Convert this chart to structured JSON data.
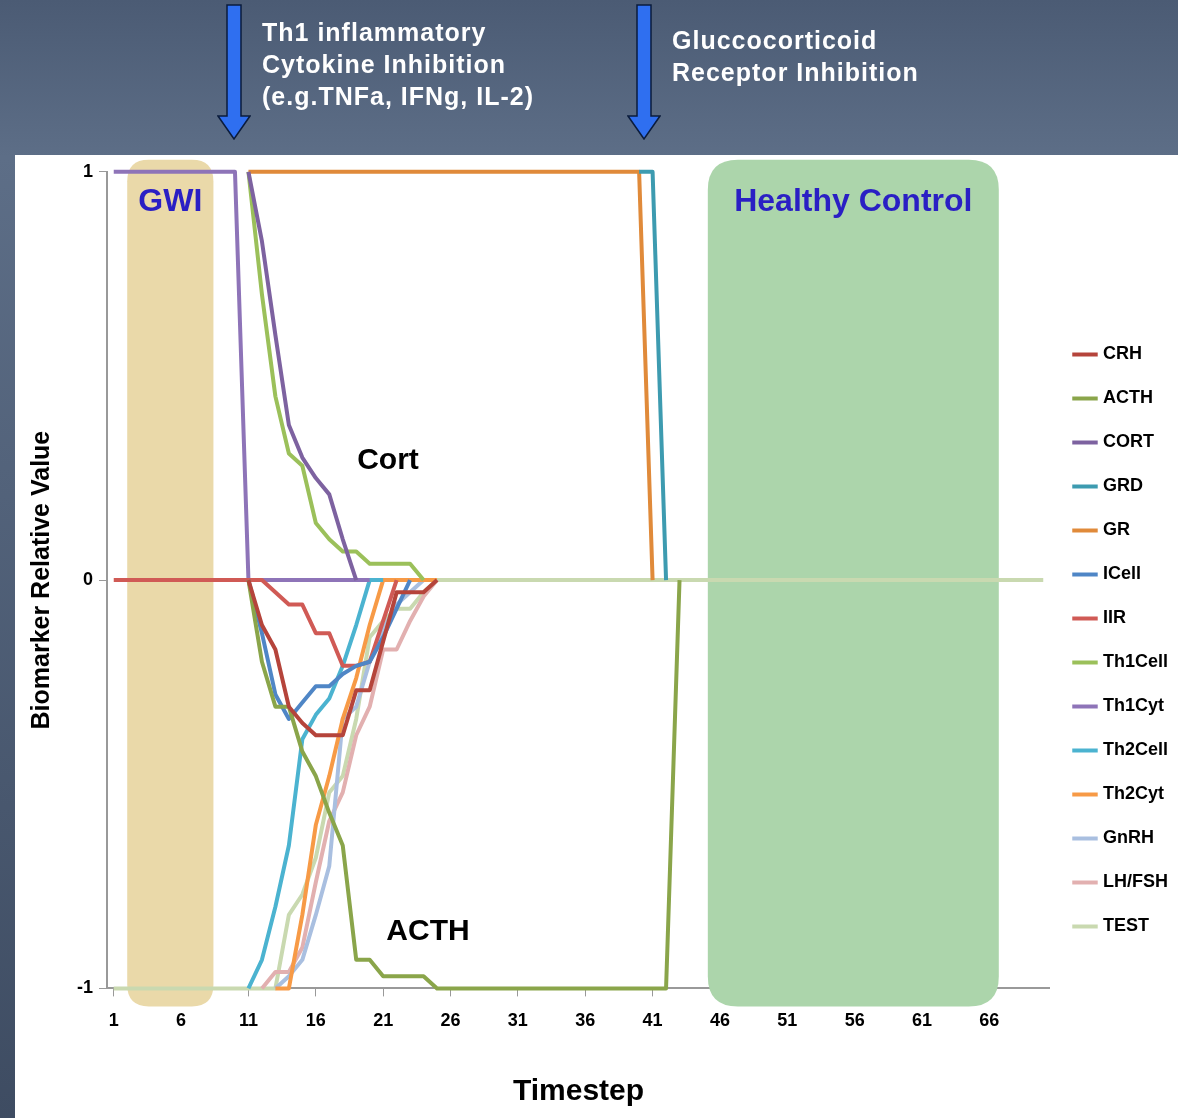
{
  "chart_data": {
    "type": "line",
    "xlabel": "Timestep",
    "ylabel": "Biomarker Relative Value",
    "legend": "right",
    "x": [
      1,
      2,
      3,
      4,
      5,
      6,
      7,
      8,
      9,
      10,
      11,
      12,
      13,
      14,
      15,
      16,
      17,
      18,
      19,
      20,
      21,
      22,
      23,
      24,
      25,
      26,
      27,
      28,
      29,
      30,
      31,
      32,
      33,
      34,
      35,
      36,
      37,
      38,
      39,
      40,
      41,
      42,
      43,
      44,
      45,
      46,
      47,
      48,
      49,
      50,
      51,
      52,
      53,
      54,
      55,
      56,
      57,
      58,
      59,
      60,
      61,
      62,
      63,
      64,
      65,
      66,
      67,
      68,
      69,
      70
    ],
    "xlim": [
      0.5,
      70.5
    ],
    "xticks": [
      1,
      6,
      11,
      16,
      21,
      26,
      31,
      36,
      41,
      46,
      51,
      56,
      61,
      66
    ],
    "ylim": [
      -1,
      1
    ],
    "yticks": [
      -1,
      0,
      1
    ],
    "series": [
      {
        "name": "CRH",
        "color": "#b5443b",
        "values": [
          null,
          null,
          null,
          null,
          null,
          null,
          null,
          null,
          null,
          null,
          0,
          -0.11,
          -0.17,
          -0.31,
          -0.35,
          -0.38,
          -0.38,
          -0.38,
          -0.27,
          -0.27,
          -0.15,
          -0.03,
          -0.03,
          -0.03,
          0,
          null,
          null,
          null,
          null,
          null,
          null,
          null,
          null,
          null,
          null,
          null,
          null,
          null,
          null,
          null,
          null,
          null,
          null,
          null,
          null,
          null,
          null,
          null,
          null,
          null,
          null,
          null,
          null,
          null,
          null,
          null,
          null,
          null,
          null,
          null,
          null,
          null,
          null,
          null,
          null,
          null,
          null,
          null,
          null,
          null
        ]
      },
      {
        "name": "ACTH",
        "color": "#8aa54a",
        "values": [
          null,
          null,
          null,
          null,
          null,
          null,
          null,
          null,
          null,
          null,
          0,
          -0.2,
          -0.31,
          -0.31,
          -0.42,
          -0.48,
          -0.57,
          -0.65,
          -0.93,
          -0.93,
          -0.97,
          -0.97,
          -0.97,
          -0.97,
          -1,
          -1,
          -1,
          -1,
          -1,
          -1,
          -1,
          -1,
          -1,
          -1,
          -1,
          -1,
          -1,
          -1,
          -1,
          -1,
          -1,
          -1,
          0,
          null,
          null,
          null,
          null,
          null,
          null,
          null,
          null,
          null,
          null,
          null,
          null,
          null,
          null,
          null,
          null,
          null,
          null,
          null,
          null,
          null,
          null,
          null,
          null,
          null,
          null,
          null
        ]
      },
      {
        "name": "CORT",
        "color": "#7d62a0",
        "values": [
          null,
          null,
          null,
          null,
          null,
          null,
          null,
          null,
          null,
          null,
          1,
          0.83,
          0.6,
          0.38,
          0.3,
          0.25,
          0.21,
          0.1,
          0,
          null,
          null,
          null,
          null,
          null,
          null,
          null,
          null,
          null,
          null,
          null,
          null,
          null,
          null,
          null,
          null,
          null,
          null,
          null,
          null,
          null,
          null,
          null,
          null,
          null,
          null,
          null,
          null,
          null,
          null,
          null,
          null,
          null,
          null,
          null,
          null,
          null,
          null,
          null,
          null,
          null,
          null,
          null,
          null,
          null,
          null,
          null,
          null,
          null,
          null,
          null
        ]
      },
      {
        "name": "GRD",
        "color": "#3d9bb0",
        "values": [
          null,
          null,
          null,
          null,
          null,
          null,
          null,
          null,
          null,
          null,
          null,
          null,
          null,
          null,
          null,
          null,
          null,
          null,
          null,
          null,
          null,
          null,
          null,
          null,
          null,
          null,
          null,
          null,
          null,
          null,
          null,
          null,
          null,
          null,
          null,
          null,
          null,
          null,
          null,
          1,
          1,
          0,
          null,
          null,
          null,
          null,
          null,
          null,
          null,
          null,
          null,
          null,
          null,
          null,
          null,
          null,
          null,
          null,
          null,
          null,
          null,
          null,
          null,
          null,
          null,
          null,
          null,
          null,
          null,
          null
        ]
      },
      {
        "name": "GR",
        "color": "#e08a3a",
        "values": [
          null,
          null,
          null,
          null,
          null,
          null,
          null,
          null,
          null,
          null,
          1,
          1,
          1,
          1,
          1,
          1,
          1,
          1,
          1,
          1,
          1,
          1,
          1,
          1,
          1,
          1,
          1,
          1,
          1,
          1,
          1,
          1,
          1,
          1,
          1,
          1,
          1,
          1,
          1,
          1,
          0,
          null,
          null,
          null,
          null,
          null,
          null,
          null,
          null,
          null,
          null,
          null,
          null,
          null,
          null,
          null,
          null,
          null,
          null,
          null,
          null,
          null,
          null,
          null,
          null,
          null,
          null,
          null,
          null,
          null
        ]
      },
      {
        "name": "ICell",
        "color": "#4f86c6",
        "values": [
          null,
          null,
          null,
          null,
          null,
          null,
          null,
          null,
          null,
          null,
          0,
          -0.13,
          -0.28,
          -0.34,
          -0.3,
          -0.26,
          -0.26,
          -0.23,
          -0.21,
          -0.2,
          -0.14,
          -0.07,
          0,
          null,
          null,
          null,
          null,
          null,
          null,
          null,
          null,
          null,
          null,
          null,
          null,
          null,
          null,
          null,
          null,
          null,
          null,
          null,
          null,
          null,
          null,
          null,
          null,
          null,
          null,
          null,
          null,
          null,
          null,
          null,
          null,
          null,
          null,
          null,
          null,
          null,
          null,
          null,
          null,
          null,
          null,
          null,
          null,
          null,
          null,
          null
        ]
      },
      {
        "name": "IIR",
        "color": "#d05a55",
        "values": [
          0,
          0,
          0,
          0,
          0,
          0,
          0,
          0,
          0,
          0,
          0,
          0,
          -0.03,
          -0.06,
          -0.06,
          -0.13,
          -0.13,
          -0.21,
          -0.21,
          -0.2,
          -0.1,
          0,
          null,
          null,
          null,
          null,
          null,
          null,
          null,
          null,
          null,
          null,
          null,
          null,
          null,
          null,
          null,
          null,
          null,
          null,
          null,
          null,
          null,
          null,
          null,
          null,
          null,
          null,
          null,
          null,
          null,
          null,
          null,
          null,
          null,
          null,
          null,
          null,
          null,
          null,
          null,
          null,
          null,
          null,
          null,
          null,
          null,
          null,
          null,
          null
        ]
      },
      {
        "name": "Th1Cell",
        "color": "#9bc05a",
        "values": [
          null,
          null,
          null,
          null,
          null,
          null,
          null,
          null,
          null,
          null,
          1,
          0.7,
          0.45,
          0.31,
          0.28,
          0.14,
          0.1,
          0.07,
          0.07,
          0.04,
          0.04,
          0.04,
          0.04,
          0,
          null,
          null,
          null,
          null,
          null,
          null,
          null,
          null,
          null,
          null,
          null,
          null,
          null,
          null,
          null,
          null,
          null,
          null,
          null,
          null,
          null,
          null,
          null,
          null,
          null,
          null,
          null,
          null,
          null,
          null,
          null,
          null,
          null,
          null,
          null,
          null,
          null,
          null,
          null,
          null,
          null,
          null,
          null,
          null,
          null,
          null
        ]
      },
      {
        "name": "Th1Cyt",
        "color": "#8e74b8",
        "values": [
          1,
          1,
          1,
          1,
          1,
          1,
          1,
          1,
          1,
          1,
          0,
          0,
          0,
          0,
          0,
          0,
          0,
          0,
          0,
          0,
          null,
          null,
          null,
          null,
          null,
          null,
          null,
          null,
          null,
          null,
          null,
          null,
          null,
          null,
          null,
          null,
          null,
          null,
          null,
          null,
          null,
          null,
          null,
          null,
          null,
          null,
          null,
          null,
          null,
          null,
          null,
          null,
          null,
          null,
          null,
          null,
          null,
          null,
          null,
          null,
          null,
          null,
          null,
          null,
          null,
          null,
          null,
          null,
          null,
          null
        ]
      },
      {
        "name": "Th2Cell",
        "color": "#4bb3d0",
        "values": [
          null,
          null,
          null,
          null,
          null,
          null,
          null,
          null,
          null,
          null,
          -1,
          -0.93,
          -0.8,
          -0.65,
          -0.39,
          -0.33,
          -0.29,
          -0.21,
          -0.11,
          0,
          0,
          null,
          null,
          null,
          null,
          null,
          null,
          null,
          null,
          null,
          null,
          null,
          null,
          null,
          null,
          null,
          null,
          null,
          null,
          null,
          null,
          null,
          null,
          null,
          null,
          null,
          null,
          null,
          null,
          null,
          null,
          null,
          null,
          null,
          null,
          null,
          null,
          null,
          null,
          null,
          null,
          null,
          null,
          null,
          null,
          null,
          null,
          null,
          null,
          null
        ]
      },
      {
        "name": "Th2Cyt",
        "color": "#f79a46",
        "values": [
          null,
          null,
          null,
          null,
          null,
          null,
          null,
          null,
          null,
          null,
          null,
          null,
          -1,
          -1,
          -0.82,
          -0.6,
          -0.48,
          -0.34,
          -0.24,
          -0.11,
          0,
          0,
          0,
          0,
          0,
          null,
          null,
          null,
          null,
          null,
          null,
          null,
          null,
          null,
          null,
          null,
          null,
          null,
          null,
          null,
          null,
          null,
          null,
          null,
          null,
          null,
          null,
          null,
          null,
          null,
          null,
          null,
          null,
          null,
          null,
          null,
          null,
          null,
          null,
          null,
          null,
          null,
          null,
          null,
          null,
          null,
          null,
          null,
          null,
          null
        ]
      },
      {
        "name": "GnRH",
        "color": "#a9bfe0",
        "values": [
          null,
          null,
          null,
          null,
          null,
          null,
          null,
          null,
          null,
          null,
          null,
          null,
          -1,
          -0.97,
          -0.93,
          -0.82,
          -0.7,
          -0.34,
          -0.31,
          -0.2,
          -0.12,
          -0.06,
          -0.03,
          0,
          0,
          null,
          null,
          null,
          null,
          null,
          null,
          null,
          null,
          null,
          null,
          null,
          null,
          null,
          null,
          null,
          null,
          null,
          null,
          null,
          null,
          null,
          null,
          null,
          null,
          null,
          null,
          null,
          null,
          null,
          null,
          null,
          null,
          null,
          null,
          null,
          null,
          null,
          null,
          null,
          null,
          null,
          null,
          null,
          null,
          null
        ]
      },
      {
        "name": "LH/FSH",
        "color": "#e2b0b0",
        "values": [
          null,
          null,
          null,
          null,
          null,
          null,
          null,
          null,
          null,
          null,
          null,
          -1,
          -0.96,
          -0.96,
          -0.9,
          -0.74,
          -0.59,
          -0.52,
          -0.38,
          -0.31,
          -0.17,
          -0.17,
          -0.1,
          -0.04,
          0,
          null,
          null,
          null,
          null,
          null,
          null,
          null,
          null,
          null,
          null,
          null,
          null,
          null,
          null,
          null,
          null,
          null,
          null,
          null,
          null,
          null,
          null,
          null,
          null,
          null,
          null,
          null,
          null,
          null,
          null,
          null,
          null,
          null,
          null,
          null,
          null,
          null,
          null,
          null,
          null,
          null,
          null,
          null,
          null,
          null
        ]
      },
      {
        "name": "TEST",
        "color": "#c9d9b0",
        "values": [
          -1,
          -1,
          -1,
          -1,
          -1,
          -1,
          -1,
          -1,
          -1,
          -1,
          -1,
          -1,
          -1,
          -0.82,
          -0.77,
          -0.68,
          -0.52,
          -0.48,
          -0.34,
          -0.14,
          -0.1,
          -0.07,
          -0.07,
          -0.03,
          0,
          0,
          0,
          0,
          0,
          0,
          0,
          0,
          0,
          0,
          0,
          0,
          0,
          0,
          0,
          0,
          0,
          0,
          0,
          0,
          0,
          0,
          0,
          0,
          0,
          0,
          0,
          0,
          0,
          0,
          0,
          0,
          0,
          0,
          0,
          0,
          0,
          0,
          0,
          0,
          0,
          0,
          0,
          0,
          0,
          0
        ]
      }
    ],
    "bands": [
      {
        "axis": "x",
        "from": 2,
        "to": 8.4,
        "label": "GWI",
        "color": "#ead9a9"
      },
      {
        "axis": "x",
        "from": 45.1,
        "to": 66.7,
        "label": "Healthy Control",
        "color": "#acd5ab"
      }
    ],
    "annotations": [
      "Th1 inflammatory Cytokine Inhibition (e.g.TNFa,  IFNg, IL-2)",
      "Gluccocorticoid Receptor Inhibition",
      "Cort",
      "ACTH"
    ]
  }
}
